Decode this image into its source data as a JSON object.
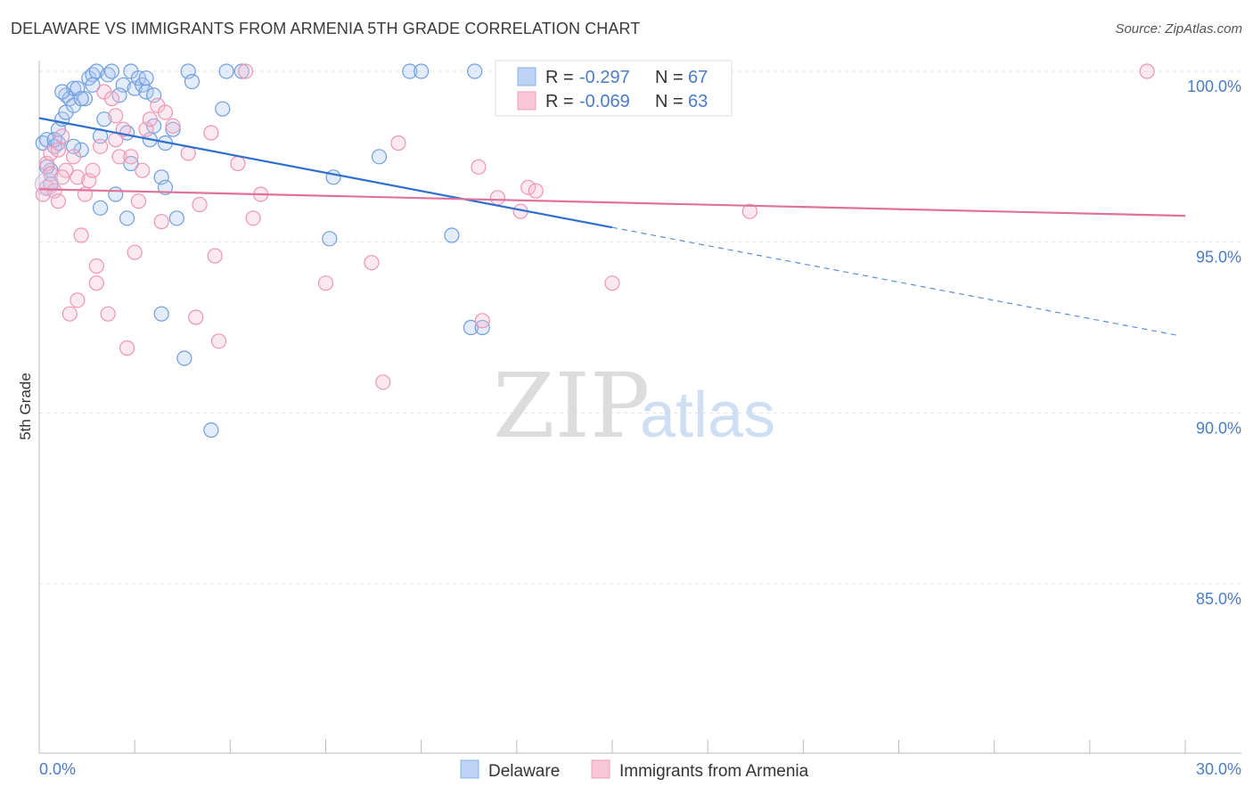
{
  "header": {
    "title": "DELAWARE VS IMMIGRANTS FROM ARMENIA 5TH GRADE CORRELATION CHART",
    "source": "Source: ZipAtlas.com"
  },
  "watermark": {
    "zip": "ZIP",
    "atlas": "atlas"
  },
  "legend": {
    "rows": [
      {
        "r_label": "R =",
        "r_value": "-0.297",
        "n_label": "N =",
        "n_value": "67"
      },
      {
        "r_label": "R =",
        "r_value": "-0.069",
        "n_label": "N =",
        "n_value": "63"
      }
    ]
  },
  "bottom_legend": {
    "series1": "Delaware",
    "series2": "Immigrants from Armenia"
  },
  "chart_data": {
    "type": "scatter",
    "title": "DELAWARE VS IMMIGRANTS FROM ARMENIA 5TH GRADE CORRELATION CHART",
    "xlabel": "",
    "ylabel": "5th Grade",
    "xlim": [
      0,
      30
    ],
    "ylim": [
      80,
      100.5
    ],
    "x_tick_labels": [
      "0.0%",
      "30.0%"
    ],
    "y_ticks": [
      85,
      90,
      95,
      100
    ],
    "y_tick_labels": [
      "85.0%",
      "90.0%",
      "95.0%",
      "100.0%"
    ],
    "grid": true,
    "legend_position": "top-center",
    "colors": {
      "Delaware": "#4a7cc9",
      "Immigrants from Armenia": "#e47199"
    },
    "series": [
      {
        "name": "Delaware",
        "r": -0.297,
        "n": 67,
        "trend": {
          "x": [
            0.0,
            15.0
          ],
          "y": [
            98.63,
            95.43
          ]
        },
        "trend_extrapolated": {
          "x": [
            15.0,
            29.8
          ],
          "y": [
            95.43,
            92.27
          ]
        },
        "points": [
          [
            0.1,
            97.9
          ],
          [
            0.2,
            98.0
          ],
          [
            0.3,
            97.1
          ],
          [
            0.4,
            97.8
          ],
          [
            0.5,
            97.9
          ],
          [
            0.5,
            98.3
          ],
          [
            0.6,
            98.6
          ],
          [
            0.7,
            98.8
          ],
          [
            0.7,
            99.3
          ],
          [
            0.8,
            99.2
          ],
          [
            0.9,
            99.0
          ],
          [
            0.9,
            99.5
          ],
          [
            1.0,
            99.5
          ],
          [
            1.1,
            97.7
          ],
          [
            1.2,
            99.2
          ],
          [
            1.3,
            99.8
          ],
          [
            1.4,
            99.9
          ],
          [
            1.5,
            100.0
          ],
          [
            1.6,
            98.1
          ],
          [
            1.7,
            98.6
          ],
          [
            1.8,
            99.9
          ],
          [
            1.9,
            100.0
          ],
          [
            2.0,
            96.4
          ],
          [
            2.2,
            99.6
          ],
          [
            2.3,
            95.7
          ],
          [
            2.3,
            98.2
          ],
          [
            2.4,
            97.3
          ],
          [
            2.4,
            100.0
          ],
          [
            2.5,
            99.5
          ],
          [
            2.6,
            99.8
          ],
          [
            2.7,
            99.6
          ],
          [
            2.8,
            99.4
          ],
          [
            2.8,
            99.8
          ],
          [
            2.9,
            98.0
          ],
          [
            3.0,
            98.4
          ],
          [
            3.0,
            99.3
          ],
          [
            3.2,
            96.9
          ],
          [
            3.3,
            97.9
          ],
          [
            3.3,
            96.6
          ],
          [
            3.5,
            98.3
          ],
          [
            3.6,
            95.7
          ],
          [
            3.8,
            91.6
          ],
          [
            3.9,
            100.0
          ],
          [
            4.0,
            99.7
          ],
          [
            4.5,
            89.5
          ],
          [
            4.9,
            100.0
          ],
          [
            5.3,
            100.0
          ],
          [
            4.8,
            98.9
          ],
          [
            3.2,
            92.9
          ],
          [
            7.6,
            95.1
          ],
          [
            7.7,
            96.9
          ],
          [
            8.9,
            97.5
          ],
          [
            9.7,
            100.0
          ],
          [
            10.0,
            100.0
          ],
          [
            10.8,
            95.2
          ],
          [
            11.4,
            100.0
          ],
          [
            11.3,
            92.5
          ],
          [
            11.6,
            92.5
          ],
          [
            0.2,
            97.2
          ],
          [
            0.3,
            96.7
          ],
          [
            1.6,
            96.0
          ],
          [
            0.4,
            98.0
          ],
          [
            1.1,
            99.2
          ],
          [
            2.1,
            99.3
          ],
          [
            0.9,
            97.8
          ],
          [
            1.4,
            99.6
          ],
          [
            0.6,
            99.4
          ]
        ]
      },
      {
        "name": "Immigrants from Armenia",
        "r": -0.069,
        "n": 63,
        "trend": {
          "x": [
            0.0,
            30.0
          ],
          "y": [
            96.55,
            95.77
          ]
        },
        "points": [
          [
            0.1,
            96.4
          ],
          [
            0.2,
            96.6
          ],
          [
            0.2,
            97.3
          ],
          [
            0.3,
            97.6
          ],
          [
            0.4,
            96.5
          ],
          [
            0.5,
            97.7
          ],
          [
            0.5,
            96.2
          ],
          [
            0.6,
            98.1
          ],
          [
            0.7,
            97.1
          ],
          [
            0.8,
            92.9
          ],
          [
            0.9,
            97.5
          ],
          [
            1.0,
            93.3
          ],
          [
            1.0,
            96.9
          ],
          [
            1.1,
            95.2
          ],
          [
            1.2,
            96.4
          ],
          [
            1.3,
            96.8
          ],
          [
            1.4,
            97.1
          ],
          [
            1.5,
            94.3
          ],
          [
            1.5,
            93.8
          ],
          [
            1.6,
            97.8
          ],
          [
            1.7,
            99.4
          ],
          [
            1.8,
            92.9
          ],
          [
            1.9,
            99.2
          ],
          [
            2.0,
            98.7
          ],
          [
            2.1,
            97.5
          ],
          [
            2.2,
            98.3
          ],
          [
            2.3,
            91.9
          ],
          [
            2.4,
            97.5
          ],
          [
            2.5,
            94.7
          ],
          [
            2.6,
            96.2
          ],
          [
            2.7,
            97.1
          ],
          [
            2.8,
            98.3
          ],
          [
            2.9,
            98.6
          ],
          [
            3.1,
            99.0
          ],
          [
            3.2,
            95.6
          ],
          [
            3.3,
            98.8
          ],
          [
            3.5,
            98.4
          ],
          [
            3.9,
            97.6
          ],
          [
            4.1,
            92.8
          ],
          [
            4.2,
            96.1
          ],
          [
            4.5,
            98.2
          ],
          [
            4.6,
            94.6
          ],
          [
            4.7,
            92.1
          ],
          [
            5.2,
            97.3
          ],
          [
            5.4,
            100.0
          ],
          [
            5.6,
            95.7
          ],
          [
            5.8,
            96.4
          ],
          [
            7.5,
            93.8
          ],
          [
            8.7,
            94.4
          ],
          [
            9.0,
            90.9
          ],
          [
            9.4,
            97.9
          ],
          [
            11.5,
            97.2
          ],
          [
            11.6,
            92.7
          ],
          [
            12.0,
            96.3
          ],
          [
            12.6,
            95.9
          ],
          [
            12.8,
            96.6
          ],
          [
            13.0,
            96.5
          ],
          [
            15.0,
            93.8
          ],
          [
            18.6,
            95.9
          ],
          [
            29.0,
            100.0
          ],
          [
            0.3,
            97.0
          ],
          [
            0.6,
            96.9
          ],
          [
            2.0,
            98.0
          ]
        ]
      }
    ]
  }
}
